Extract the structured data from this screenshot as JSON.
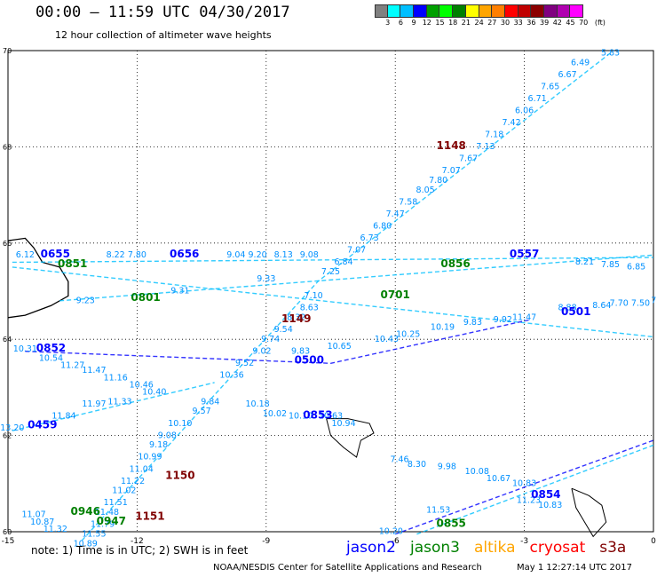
{
  "header": {
    "title": "00:00 – 11:59 UTC 04/30/2017",
    "subtitle": "12 hour collection of altimeter wave heights"
  },
  "colorbar": {
    "colors": [
      "#808080",
      "#00ffff",
      "#00bfff",
      "#0000ff",
      "#00a000",
      "#00ff00",
      "#008000",
      "#ffff00",
      "#ffa500",
      "#ff7f00",
      "#ff0000",
      "#c00000",
      "#8b0000",
      "#800080",
      "#b000b0",
      "#ff00ff"
    ],
    "labels": [
      "3",
      "6",
      "9",
      "12",
      "15",
      "18",
      "21",
      "24",
      "27",
      "30",
      "33",
      "36",
      "39",
      "42",
      "45",
      "70",
      "(ft)"
    ]
  },
  "axes": {
    "x_ticks": [
      "-15",
      "-12",
      "-9",
      "-6",
      "-3",
      "0"
    ],
    "y_ticks": [
      "70",
      "68",
      "66",
      "64",
      "62",
      "60"
    ]
  },
  "labels": {
    "times": [
      {
        "t": "0655",
        "color": "#0000ff",
        "lon": -13.9,
        "lat": 65.7
      },
      {
        "t": "0656",
        "color": "#0000ff",
        "lon": -10.9,
        "lat": 65.7
      },
      {
        "t": "0557",
        "color": "#0000ff",
        "lon": -3.0,
        "lat": 65.7
      },
      {
        "t": "1148",
        "color": "#800000",
        "lon": -4.7,
        "lat": 67.95
      },
      {
        "t": "0851",
        "color": "#008000",
        "lon": -13.5,
        "lat": 65.5
      },
      {
        "t": "0856",
        "color": "#008000",
        "lon": -4.6,
        "lat": 65.5
      },
      {
        "t": "0701",
        "color": "#008000",
        "lon": -6.0,
        "lat": 64.85
      },
      {
        "t": "0801",
        "color": "#008000",
        "lon": -11.8,
        "lat": 64.8
      },
      {
        "t": "0501",
        "color": "#0000ff",
        "lon": -1.8,
        "lat": 64.5
      },
      {
        "t": "1149",
        "color": "#800000",
        "lon": -8.3,
        "lat": 64.35
      },
      {
        "t": "0852",
        "color": "#0000ff",
        "lon": -14.0,
        "lat": 63.75
      },
      {
        "t": "0500",
        "color": "#0000ff",
        "lon": -8.0,
        "lat": 63.5
      },
      {
        "t": "0853",
        "color": "#0000ff",
        "lon": -7.8,
        "lat": 62.35
      },
      {
        "t": "0459",
        "color": "#0000ff",
        "lon": -14.2,
        "lat": 62.15
      },
      {
        "t": "1150",
        "color": "#800000",
        "lon": -11.0,
        "lat": 61.1
      },
      {
        "t": "0854",
        "color": "#0000ff",
        "lon": -2.5,
        "lat": 60.7
      },
      {
        "t": "0946",
        "color": "#008000",
        "lon": -13.2,
        "lat": 60.35
      },
      {
        "t": "0947",
        "color": "#008000",
        "lon": -12.6,
        "lat": 60.15
      },
      {
        "t": "1151",
        "color": "#800000",
        "lon": -11.7,
        "lat": 60.25
      },
      {
        "t": "0855",
        "color": "#008000",
        "lon": -4.7,
        "lat": 60.1
      }
    ],
    "values": [
      {
        "t": "5.83",
        "lon": -1.0,
        "lat": 69.9
      },
      {
        "t": "6.49",
        "lon": -1.7,
        "lat": 69.7
      },
      {
        "t": "6.67",
        "lon": -2.0,
        "lat": 69.45
      },
      {
        "t": "7.65",
        "lon": -2.4,
        "lat": 69.2
      },
      {
        "t": "6.71",
        "lon": -2.7,
        "lat": 68.95
      },
      {
        "t": "6.06",
        "lon": -3.0,
        "lat": 68.7
      },
      {
        "t": "7.42",
        "lon": -3.3,
        "lat": 68.45
      },
      {
        "t": "7.18",
        "lon": -3.7,
        "lat": 68.2
      },
      {
        "t": "7.13",
        "lon": -3.9,
        "lat": 67.95
      },
      {
        "t": "7.67",
        "lon": -4.3,
        "lat": 67.7
      },
      {
        "t": "7.07",
        "lon": -4.7,
        "lat": 67.45
      },
      {
        "t": "7.80",
        "lon": -5.0,
        "lat": 67.25
      },
      {
        "t": "8.05",
        "lon": -5.3,
        "lat": 67.05
      },
      {
        "t": "7.58",
        "lon": -5.7,
        "lat": 66.8
      },
      {
        "t": "7.47",
        "lon": -6.0,
        "lat": 66.55
      },
      {
        "t": "6.80",
        "lon": -6.3,
        "lat": 66.3
      },
      {
        "t": "6.73",
        "lon": -6.6,
        "lat": 66.05
      },
      {
        "t": "7.07",
        "lon": -6.9,
        "lat": 65.8
      },
      {
        "t": "6.84",
        "lon": -7.2,
        "lat": 65.55
      },
      {
        "t": "7.25",
        "lon": -7.5,
        "lat": 65.35
      },
      {
        "t": "7.10",
        "lon": -7.9,
        "lat": 64.85
      },
      {
        "t": "8.63",
        "lon": -8.0,
        "lat": 64.6
      },
      {
        "t": "8.32",
        "lon": -8.3,
        "lat": 64.4
      },
      {
        "t": "9.54",
        "lon": -8.6,
        "lat": 64.15
      },
      {
        "t": "9.74",
        "lon": -8.9,
        "lat": 63.95
      },
      {
        "t": "9.02",
        "lon": -9.1,
        "lat": 63.7
      },
      {
        "t": "9.52",
        "lon": -9.5,
        "lat": 63.45
      },
      {
        "t": "10.36",
        "lon": -9.8,
        "lat": 63.2
      },
      {
        "t": "9.84",
        "lon": -10.3,
        "lat": 62.65
      },
      {
        "t": "9.57",
        "lon": -10.5,
        "lat": 62.45
      },
      {
        "t": "10.10",
        "lon": -11.0,
        "lat": 62.2
      },
      {
        "t": "9.08",
        "lon": -11.3,
        "lat": 61.95
      },
      {
        "t": "9.18",
        "lon": -11.5,
        "lat": 61.75
      },
      {
        "t": "10.99",
        "lon": -11.7,
        "lat": 61.5
      },
      {
        "t": "11.04",
        "lon": -11.9,
        "lat": 61.25
      },
      {
        "t": "11.22",
        "lon": -12.1,
        "lat": 61.0
      },
      {
        "t": "11.02",
        "lon": -12.3,
        "lat": 60.8
      },
      {
        "t": "11.51",
        "lon": -12.5,
        "lat": 60.55
      },
      {
        "t": "11.48",
        "lon": -12.7,
        "lat": 60.35
      },
      {
        "t": "11.79",
        "lon": -12.8,
        "lat": 60.1
      },
      {
        "t": "11.55",
        "lon": -13.0,
        "lat": 59.9
      },
      {
        "t": "10.89",
        "lon": -13.2,
        "lat": 59.7
      },
      {
        "t": "11.07",
        "lon": -14.4,
        "lat": 60.3
      },
      {
        "t": "10.87",
        "lon": -14.2,
        "lat": 60.15
      },
      {
        "t": "11.32",
        "lon": -13.9,
        "lat": 60.0
      },
      {
        "t": "6.12",
        "lon": -14.6,
        "lat": 65.7
      },
      {
        "t": "8.22",
        "lon": -12.5,
        "lat": 65.7
      },
      {
        "t": "7.80",
        "lon": -12.0,
        "lat": 65.7
      },
      {
        "t": "9.04",
        "lon": -9.7,
        "lat": 65.7
      },
      {
        "t": "9.20",
        "lon": -9.2,
        "lat": 65.7
      },
      {
        "t": "8.13",
        "lon": -8.6,
        "lat": 65.7
      },
      {
        "t": "9.08",
        "lon": -8.0,
        "lat": 65.7
      },
      {
        "t": "10.31",
        "lon": -14.6,
        "lat": 63.75
      },
      {
        "t": "10.54",
        "lon": -14.0,
        "lat": 63.55
      },
      {
        "t": "11.27",
        "lon": -13.5,
        "lat": 63.4
      },
      {
        "t": "11.47",
        "lon": -13.0,
        "lat": 63.3
      },
      {
        "t": "11.16",
        "lon": -12.5,
        "lat": 63.15
      },
      {
        "t": "10.46",
        "lon": -11.9,
        "lat": 63.0
      },
      {
        "t": "10.40",
        "lon": -11.6,
        "lat": 62.85
      },
      {
        "t": "11.97",
        "lon": -13.0,
        "lat": 62.6
      },
      {
        "t": "11.33",
        "lon": -12.4,
        "lat": 62.65
      },
      {
        "t": "11.84",
        "lon": -13.7,
        "lat": 62.35
      },
      {
        "t": "13.20",
        "lon": -14.9,
        "lat": 62.1
      },
      {
        "t": "10.18",
        "lon": -9.2,
        "lat": 62.6
      },
      {
        "t": "10.02",
        "lon": -8.8,
        "lat": 62.4
      },
      {
        "t": "10.10",
        "lon": -8.2,
        "lat": 62.35
      },
      {
        "t": "10.63",
        "lon": -7.5,
        "lat": 62.35
      },
      {
        "t": "10.94",
        "lon": -7.2,
        "lat": 62.2
      },
      {
        "t": "7.46",
        "lon": -5.9,
        "lat": 61.45
      },
      {
        "t": "8.30",
        "lon": -5.5,
        "lat": 61.35
      },
      {
        "t": "9.98",
        "lon": -4.8,
        "lat": 61.3
      },
      {
        "t": "10.08",
        "lon": -4.1,
        "lat": 61.2
      },
      {
        "t": "10.67",
        "lon": -3.6,
        "lat": 61.05
      },
      {
        "t": "10.83",
        "lon": -3.0,
        "lat": 60.95
      },
      {
        "t": "11.23",
        "lon": -2.9,
        "lat": 60.6
      },
      {
        "t": "10.83",
        "lon": -2.4,
        "lat": 60.5
      },
      {
        "t": "10.20",
        "lon": -6.1,
        "lat": 59.95
      },
      {
        "t": "11.53",
        "lon": -5.0,
        "lat": 60.4
      },
      {
        "t": "9.83",
        "lon": -8.2,
        "lat": 63.7
      },
      {
        "t": "10.65",
        "lon": -7.3,
        "lat": 63.8
      },
      {
        "t": "10.43",
        "lon": -6.2,
        "lat": 63.95
      },
      {
        "t": "10.25",
        "lon": -5.7,
        "lat": 64.05
      },
      {
        "t": "10.19",
        "lon": -4.9,
        "lat": 64.2
      },
      {
        "t": "9.83",
        "lon": -4.2,
        "lat": 64.3
      },
      {
        "t": "9.92",
        "lon": -3.5,
        "lat": 64.35
      },
      {
        "t": "11.47",
        "lon": -3.0,
        "lat": 64.4
      },
      {
        "t": "8.88",
        "lon": -2.0,
        "lat": 64.6
      },
      {
        "t": "8.64",
        "lon": -1.2,
        "lat": 64.65
      },
      {
        "t": "7.70",
        "lon": -0.8,
        "lat": 64.7
      },
      {
        "t": "7.50",
        "lon": -0.3,
        "lat": 64.7
      },
      {
        "t": "7.7",
        "lon": 0.1,
        "lat": 64.75
      },
      {
        "t": "7.85",
        "lon": -1.0,
        "lat": 65.5
      },
      {
        "t": "6.85",
        "lon": -0.4,
        "lat": 65.45
      },
      {
        "t": "8.21",
        "lon": -1.6,
        "lat": 65.55
      },
      {
        "t": "9.23",
        "lon": -13.2,
        "lat": 64.75
      },
      {
        "t": "9.33",
        "lon": -9.0,
        "lat": 65.2
      },
      {
        "t": "9.31",
        "lon": -11.0,
        "lat": 64.95
      }
    ]
  },
  "footer": {
    "note": "note:  1) Time is in UTC;  2) SWH is in feet",
    "legend": [
      {
        "name": "jason2",
        "color": "#0000ff"
      },
      {
        "name": "jason3",
        "color": "#008000"
      },
      {
        "name": "altika",
        "color": "#ffa500"
      },
      {
        "name": "cryosat",
        "color": "#ff0000"
      },
      {
        "name": "s3a",
        "color": "#800000"
      }
    ],
    "credit": "NOAA/NESDIS Center for Satellite Applications and Research",
    "stamp": "May  1 12:27:14 UTC 2017"
  }
}
